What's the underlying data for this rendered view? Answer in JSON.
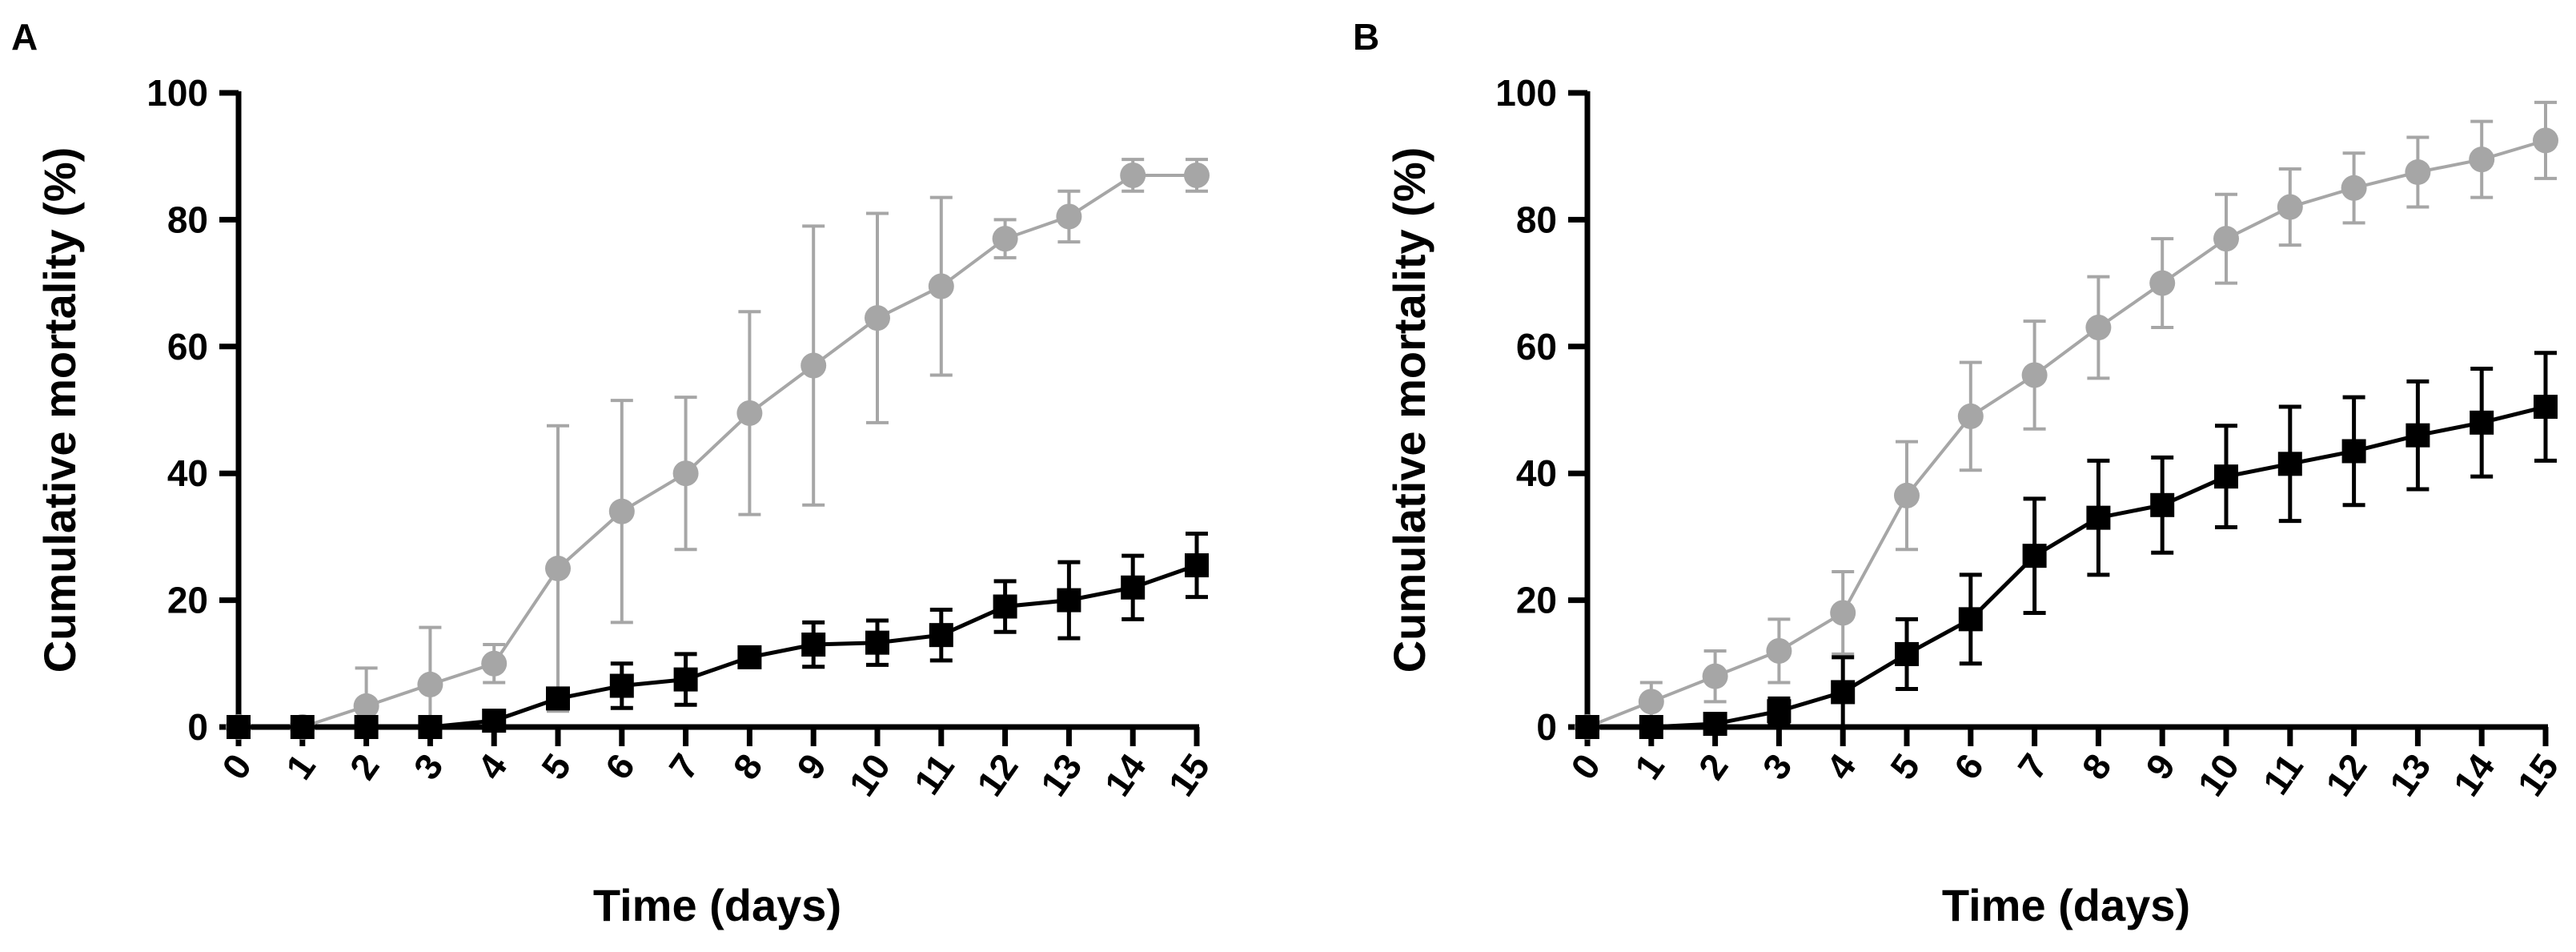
{
  "colors": {
    "gray_series": "#a6a6a6",
    "black_series": "#000000",
    "axis": "#000000"
  },
  "chart_data": [
    {
      "panel_label": "A",
      "type": "line",
      "xlabel": "Time (days)",
      "ylabel": "Cumulative mortality (%)",
      "xlim": [
        0,
        15
      ],
      "ylim": [
        0,
        100
      ],
      "x_ticks": [
        "0",
        "1",
        "2",
        "3",
        "4",
        "5",
        "6",
        "7",
        "8",
        "9",
        "10",
        "11",
        "12",
        "13",
        "14",
        "15"
      ],
      "y_ticks": [
        "0",
        "20",
        "40",
        "60",
        "80",
        "100"
      ],
      "grid": false,
      "series": [
        {
          "marker": "circle",
          "color": "#a6a6a6",
          "x": [
            0,
            1,
            2,
            3,
            4,
            5,
            6,
            7,
            8,
            9,
            10,
            11,
            12,
            13,
            14,
            15
          ],
          "values": [
            0,
            0,
            3.3,
            6.7,
            10,
            25,
            34,
            40,
            49.5,
            57,
            64.5,
            69.5,
            77,
            80.5,
            87,
            87
          ],
          "error": [
            0,
            0,
            6,
            9,
            3,
            22.5,
            17.5,
            12,
            16,
            22,
            16.5,
            14,
            3,
            4,
            2.5,
            2.5
          ]
        },
        {
          "marker": "square",
          "color": "#000000",
          "x": [
            0,
            1,
            2,
            3,
            4,
            5,
            6,
            7,
            8,
            9,
            10,
            11,
            12,
            13,
            14,
            15
          ],
          "values": [
            0,
            0,
            0,
            0,
            1,
            4.5,
            6.5,
            7.5,
            11,
            13,
            13.3,
            14.5,
            19,
            20,
            22,
            25.5
          ],
          "error": [
            0,
            0,
            0,
            0,
            0.5,
            0.5,
            3.5,
            4,
            1,
            3.5,
            3.5,
            4,
            4,
            6,
            5,
            5
          ]
        }
      ]
    },
    {
      "panel_label": "B",
      "type": "line",
      "xlabel": "Time (days)",
      "ylabel": "Cumulative mortality (%)",
      "xlim": [
        0,
        15
      ],
      "ylim": [
        0,
        100
      ],
      "x_ticks": [
        "0",
        "1",
        "2",
        "3",
        "4",
        "5",
        "6",
        "7",
        "8",
        "9",
        "10",
        "11",
        "12",
        "13",
        "14",
        "15"
      ],
      "y_ticks": [
        "0",
        "20",
        "40",
        "60",
        "80",
        "100"
      ],
      "grid": false,
      "series": [
        {
          "marker": "circle",
          "color": "#a6a6a6",
          "x": [
            0,
            1,
            2,
            3,
            4,
            5,
            6,
            7,
            8,
            9,
            10,
            11,
            12,
            13,
            14,
            15
          ],
          "values": [
            0,
            4,
            8,
            12,
            18,
            36.5,
            49,
            55.5,
            63,
            70,
            77,
            82,
            85,
            87.5,
            89.5,
            92.5
          ],
          "error": [
            0,
            3,
            4,
            5,
            6.5,
            8.5,
            8.5,
            8.5,
            8,
            7,
            7,
            6,
            5.5,
            5.5,
            6,
            6
          ]
        },
        {
          "marker": "square",
          "color": "#000000",
          "x": [
            0,
            1,
            2,
            3,
            4,
            5,
            6,
            7,
            8,
            9,
            10,
            11,
            12,
            13,
            14,
            15
          ],
          "values": [
            0,
            0,
            0.5,
            2.5,
            5.5,
            11.5,
            17,
            27,
            33,
            35,
            39.5,
            41.5,
            43.5,
            46,
            48,
            50.5
          ],
          "error": [
            0,
            0,
            0.5,
            2,
            5.5,
            5.5,
            7,
            9,
            9,
            7.5,
            8,
            9,
            8.5,
            8.5,
            8.5,
            8.5
          ]
        }
      ]
    }
  ]
}
